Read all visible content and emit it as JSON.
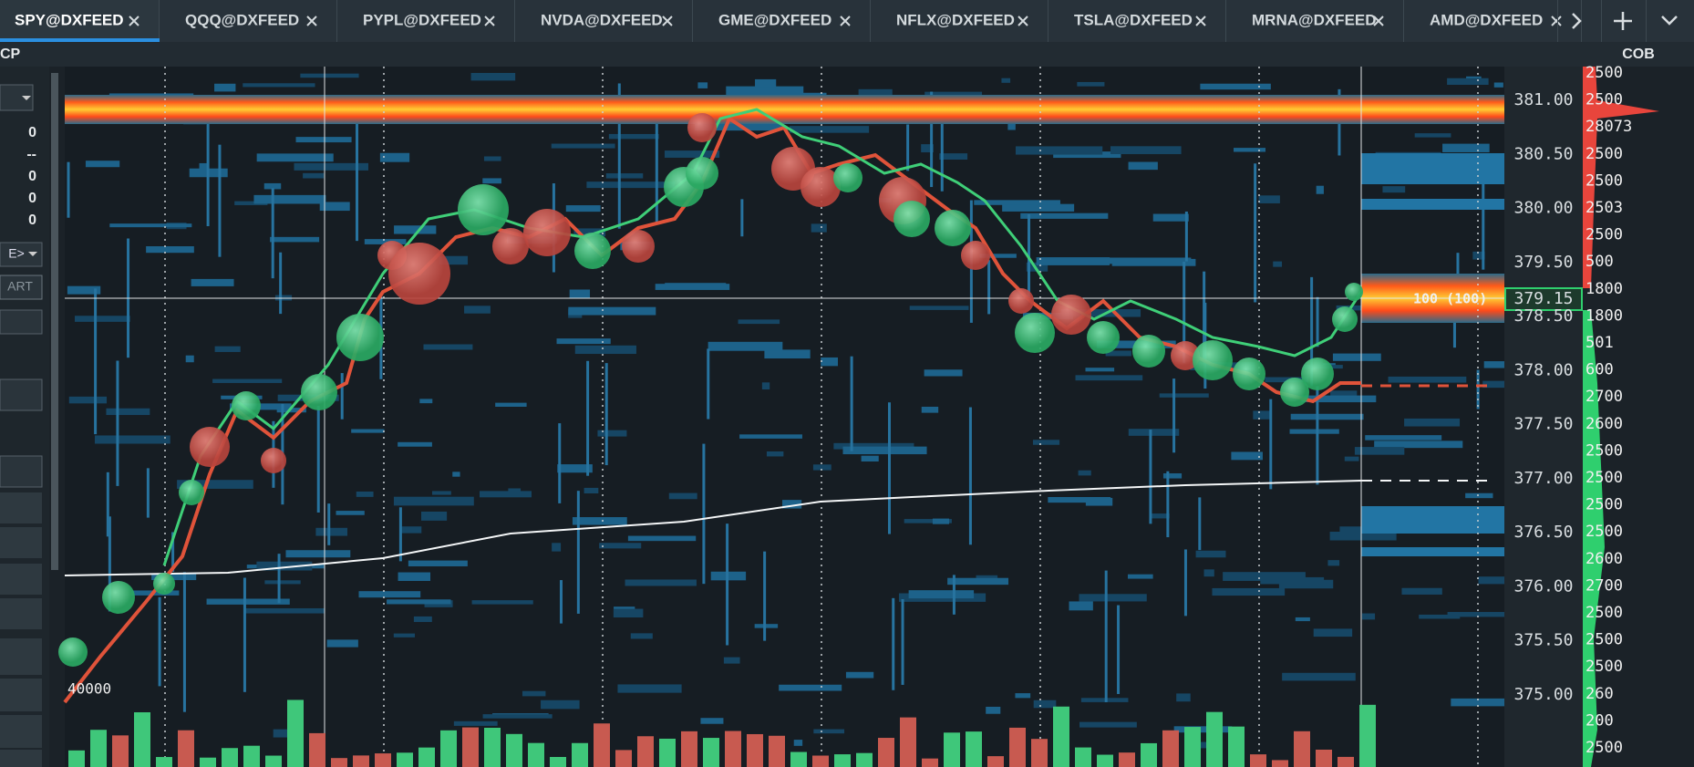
{
  "tabs": [
    "SPY@DXFEED",
    "QQQ@DXFEED",
    "PYPL@DXFEED",
    "NVDA@DXFEED",
    "GME@DXFEED",
    "NFLX@DXFEED",
    "TSLA@DXFEED",
    "MRNA@DXFEED",
    "AMD@DXFEED"
  ],
  "left_panel": {
    "title": "CP",
    "values": [
      "0",
      "--",
      "0",
      "0",
      "0"
    ],
    "select_label": "E>",
    "button_label": "ART"
  },
  "cob_title": "COB",
  "price_axis": [
    "381.00",
    "380.50",
    "380.00",
    "379.50",
    "379.15",
    "378.50",
    "378.00",
    "377.50",
    "377.00",
    "376.50",
    "376.00",
    "375.50",
    "375.00"
  ],
  "current_price": "379.15",
  "order_label": "100 (100)",
  "volume_scale_label": "40000",
  "cob_sizes": [
    "2500",
    "2500",
    "28073",
    "2500",
    "2500",
    "2503",
    "2500",
    "500",
    "1800",
    "1800",
    "501",
    "600",
    "2700",
    "2600",
    "2500",
    "2500",
    "2500",
    "2500",
    "2600",
    "2700",
    "2500",
    "2500",
    "2500",
    "260",
    "200",
    "2500"
  ]
}
